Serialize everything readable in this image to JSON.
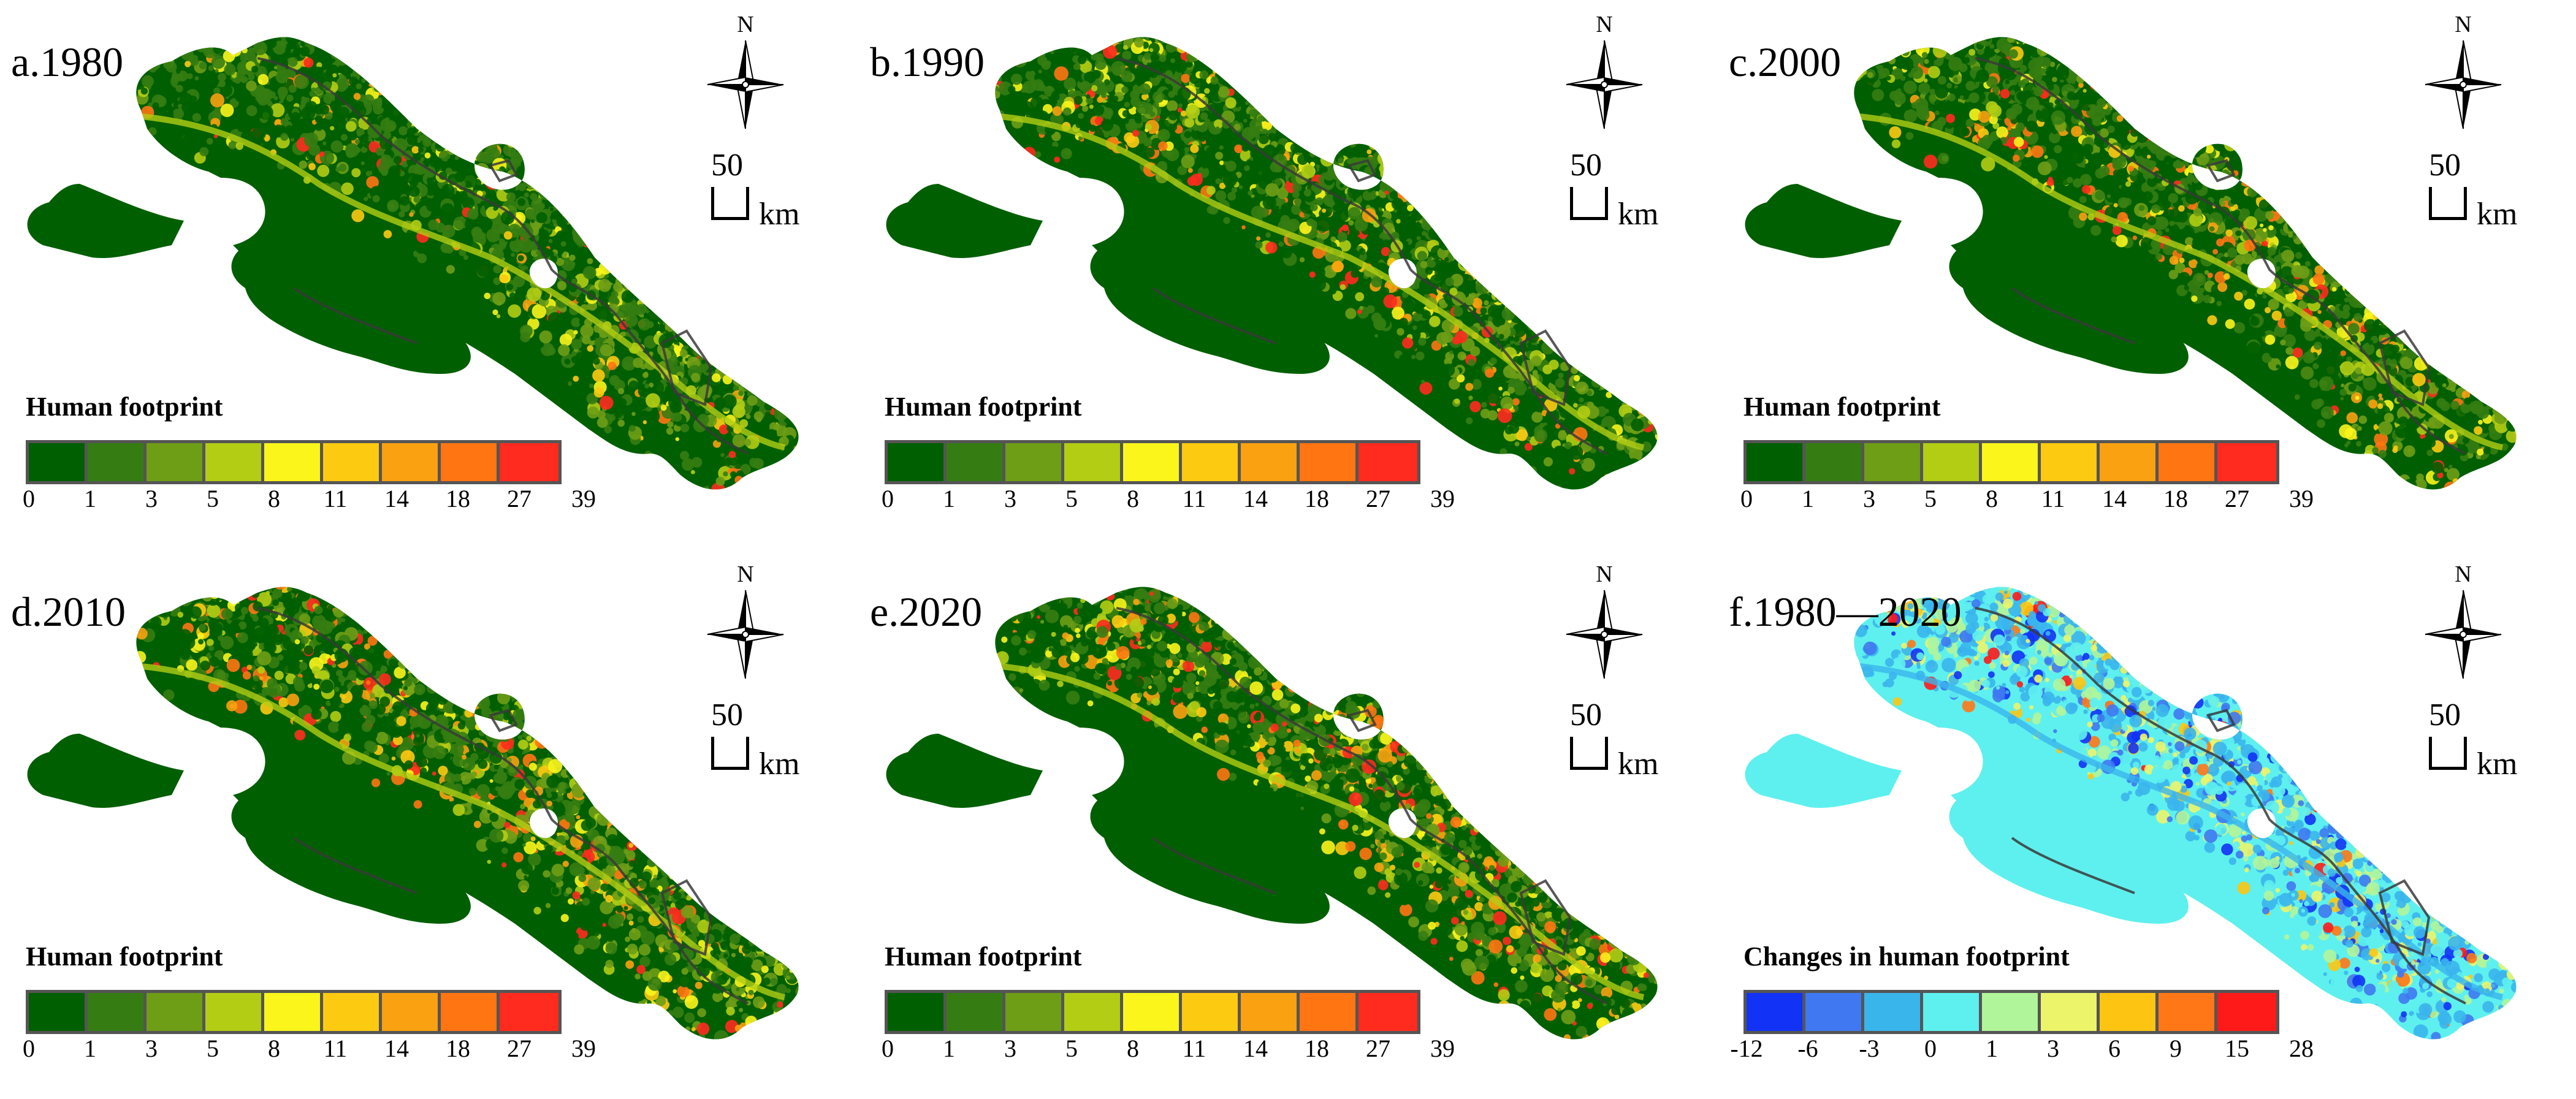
{
  "map": {
    "compass_label": "N",
    "scale_value": "50",
    "scale_unit": "km"
  },
  "legends": {
    "footprint": {
      "title": "Human footprint",
      "breaks": [
        "0",
        "1",
        "3",
        "5",
        "8",
        "11",
        "14",
        "18",
        "27",
        "39"
      ],
      "colors": [
        "#005f00",
        "#357d12",
        "#6e9d16",
        "#b2cd14",
        "#fbf51c",
        "#fdca12",
        "#f9a110",
        "#ff7512",
        "#ff2b1e"
      ]
    },
    "change": {
      "title": "Changes in human footprint",
      "breaks": [
        "-12",
        "-6",
        "-3",
        "0",
        "1",
        "3",
        "6",
        "9",
        "15",
        "28"
      ],
      "colors": [
        "#1232f5",
        "#3f78f0",
        "#3ab5ec",
        "#5ef0ee",
        "#b1f59a",
        "#ecf46a",
        "#fdc512",
        "#ff7717",
        "#ff1a1a"
      ]
    }
  },
  "panels": [
    {
      "id": "a",
      "title": "a.1980",
      "legend": "footprint",
      "kind": "footprint",
      "greenness": 0.88
    },
    {
      "id": "b",
      "title": "b.1990",
      "legend": "footprint",
      "kind": "footprint",
      "greenness": 0.84
    },
    {
      "id": "c",
      "title": "c.2000",
      "legend": "footprint",
      "kind": "footprint",
      "greenness": 0.82
    },
    {
      "id": "d",
      "title": "d.2010",
      "legend": "footprint",
      "kind": "footprint",
      "greenness": 0.8
    },
    {
      "id": "e",
      "title": "e.2020",
      "legend": "footprint",
      "kind": "footprint",
      "greenness": 0.72
    },
    {
      "id": "f",
      "title": "f.1980—2020",
      "legend": "change",
      "kind": "change",
      "greenness": 0.5
    }
  ]
}
